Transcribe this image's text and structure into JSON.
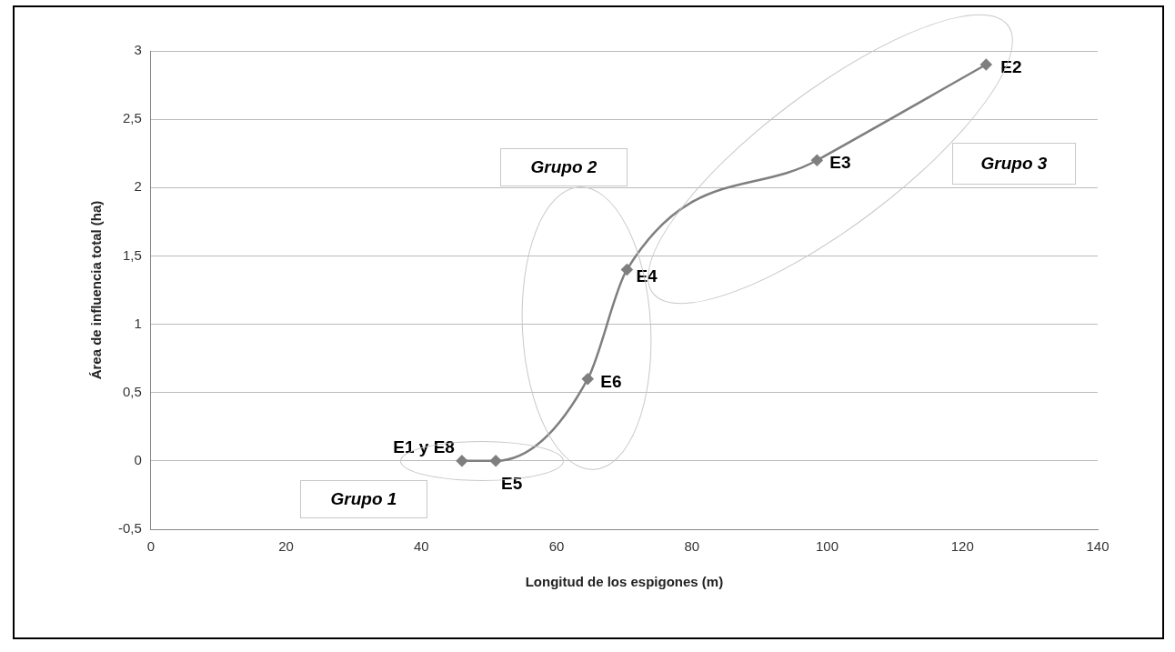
{
  "chart_data": {
    "type": "line",
    "xlabel": "Longitud de los espigones (m)",
    "ylabel": "Área de influencia total (ha)",
    "x": [
      46,
      51,
      64.6,
      70.4,
      98.5,
      123.5
    ],
    "series": [
      {
        "color": "#7f7f7f",
        "values": [
          0,
          0,
          0.6,
          1.4,
          2.2,
          2.9
        ]
      }
    ],
    "xlim": [
      0,
      140
    ],
    "xticks": [
      0,
      20,
      40,
      60,
      80,
      100,
      120,
      140
    ],
    "ylim": [
      -0.5,
      3
    ],
    "yticks": [
      {
        "value": -0.5,
        "label": "-0,5"
      },
      0,
      {
        "value": 0.5,
        "label": "0,5"
      },
      1,
      {
        "value": 1.5,
        "label": "1,5"
      },
      2,
      {
        "value": 2.5,
        "label": "2,5"
      },
      3
    ],
    "grid": "y",
    "legend": false,
    "marker": "diamond",
    "line_style": "solid",
    "annotations": [
      {
        "text": "E1 y E8",
        "x": 46,
        "y": 0
      },
      {
        "text": "E5",
        "x": 51,
        "y": 0
      },
      {
        "text": "E6",
        "x": 64.6,
        "y": 0.6
      },
      {
        "text": "E4",
        "x": 70.4,
        "y": 1.4
      },
      {
        "text": "E3",
        "x": 98.5,
        "y": 2.2
      },
      {
        "text": "E2",
        "x": 123.5,
        "y": 2.9
      },
      "Grupo 1",
      "Grupo 2",
      "Grupo 3"
    ]
  }
}
